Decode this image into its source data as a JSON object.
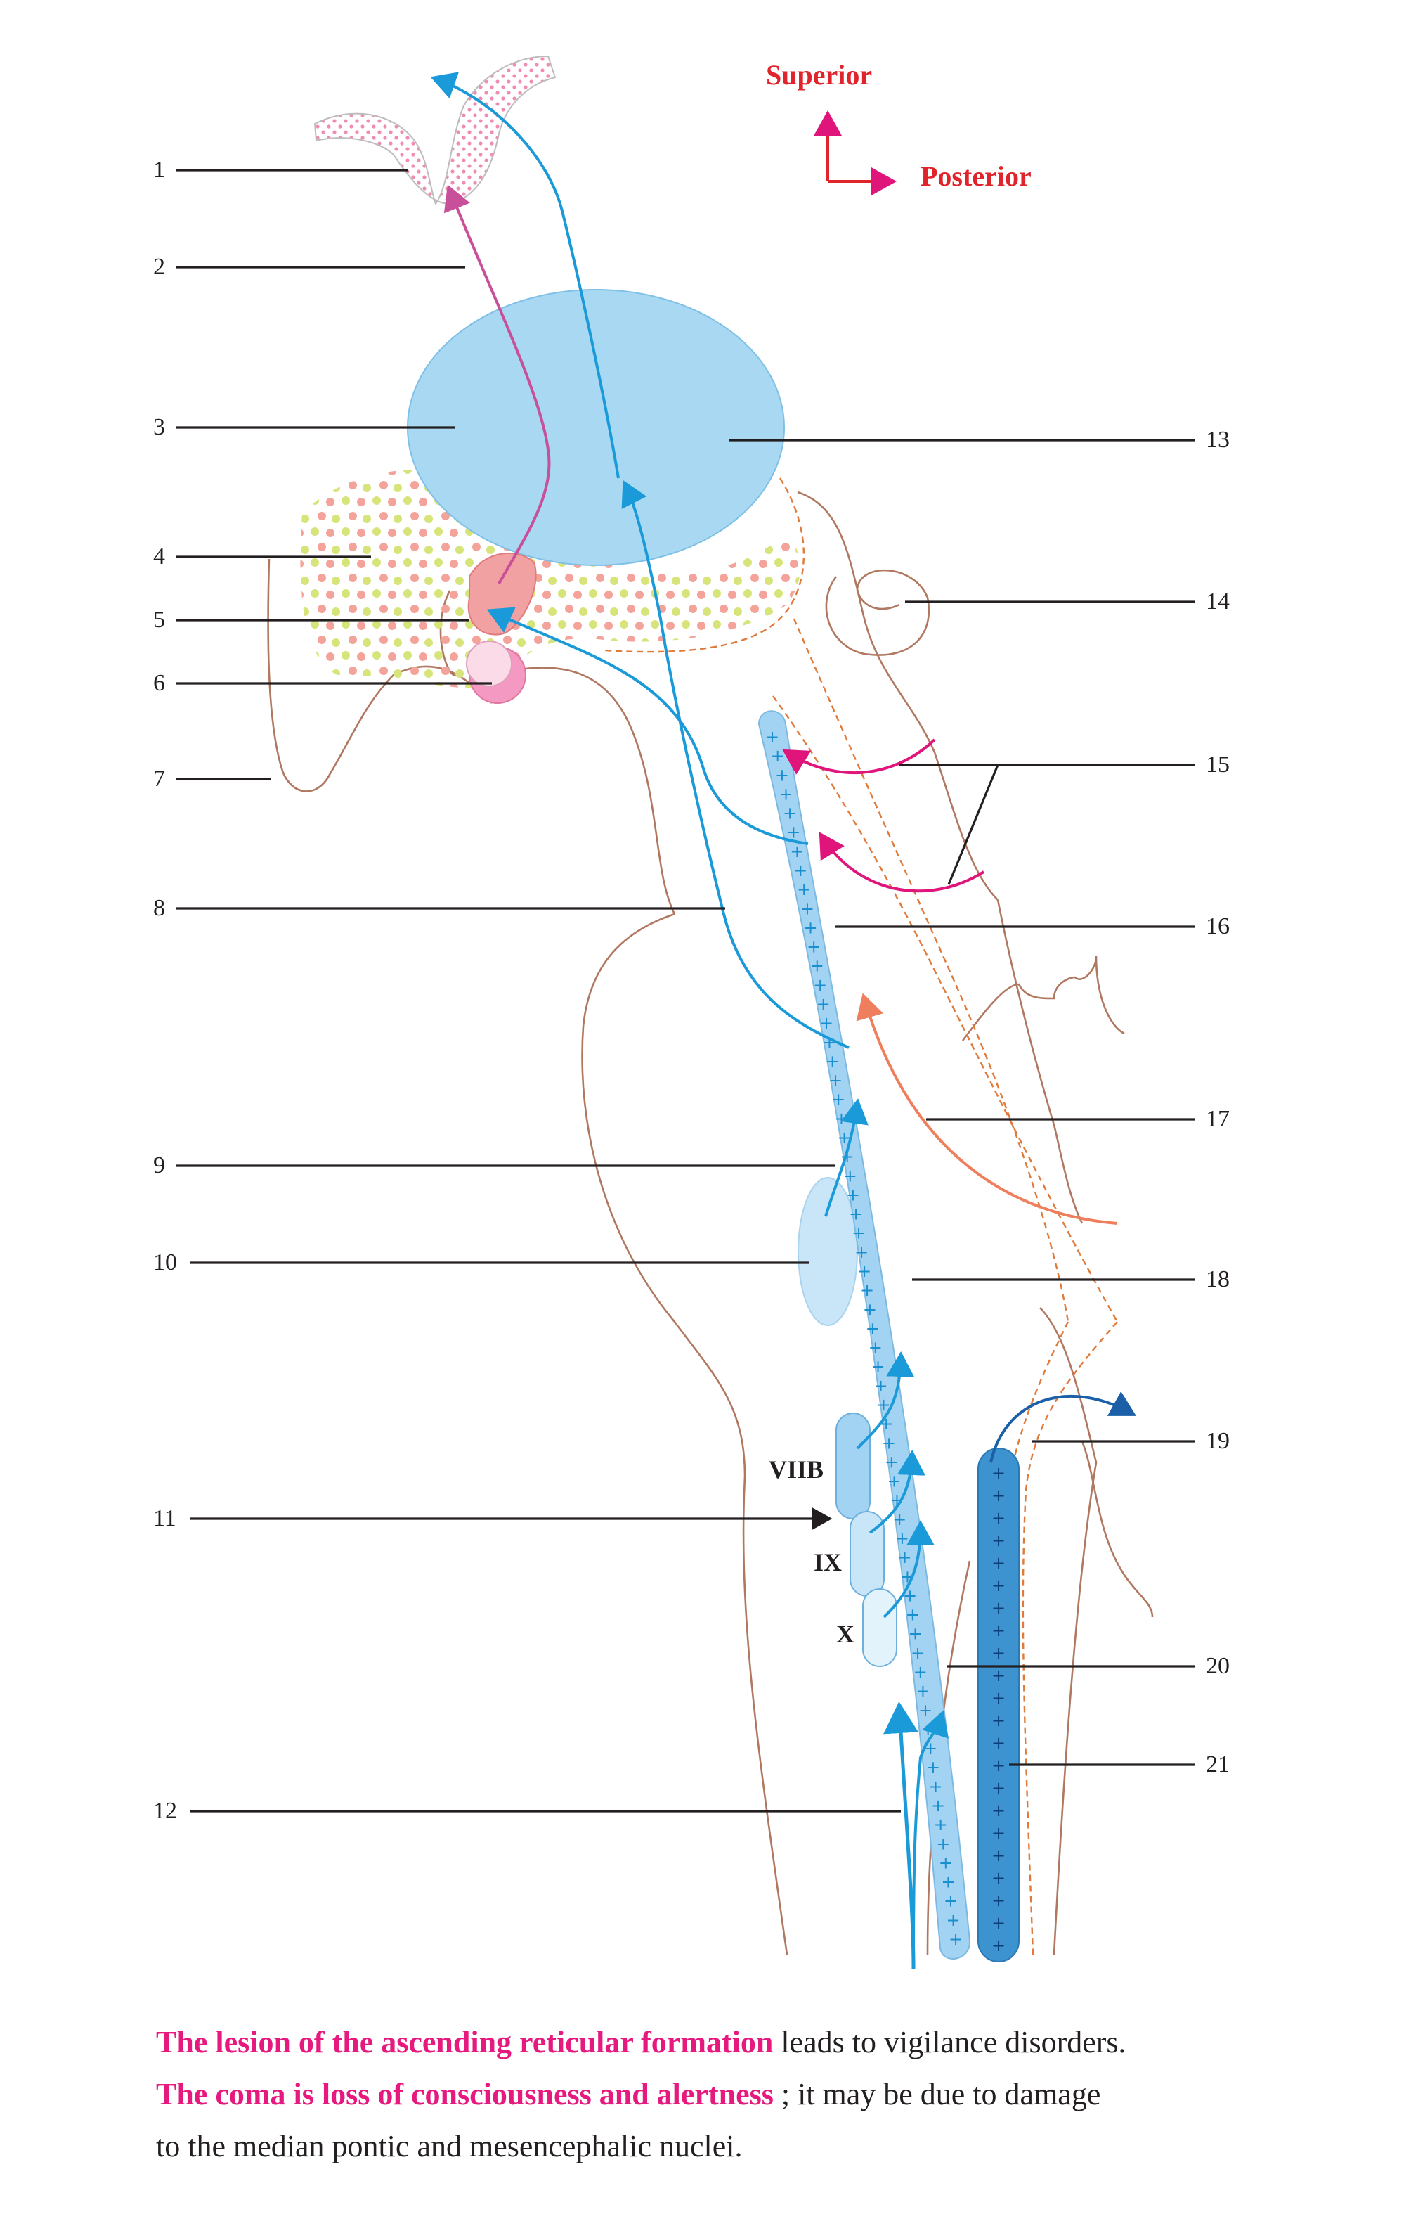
{
  "orientation": {
    "superior": "Superior",
    "posterior": "Posterior"
  },
  "left_labels": [
    "1",
    "2",
    "3",
    "4",
    "5",
    "6",
    "7",
    "8",
    "9",
    "10",
    "11",
    "12"
  ],
  "right_labels": [
    "13",
    "14",
    "15",
    "16",
    "17",
    "18",
    "19",
    "20",
    "21"
  ],
  "nuclei_labels": {
    "viib": "VIIB",
    "ix": "IX",
    "x": "X"
  },
  "caption": {
    "line1_highlight": "The lesion of the ascending reticular formation",
    "line1_rest": " leads to vigilance disorders.",
    "line2_highlight": "The coma is loss of consciousness and alertness",
    "line2_rest": " ; it may be due to damage",
    "line3": "to the median pontic and mesencephalic nuclei."
  },
  "colors": {
    "orientation": "#e0242b",
    "highlight": "#e6197f",
    "thalamus": "#a8d8f2",
    "reticular_column": "#a3d3f2",
    "posterior_column": "#3d93cf",
    "ascending_fiber": "#1a9ad8",
    "olfactory_fiber": "#c8509a",
    "input_fiber_magenta": "#e0157c",
    "input_fiber_salmon": "#ef7e5c",
    "outline": "#b07860"
  }
}
